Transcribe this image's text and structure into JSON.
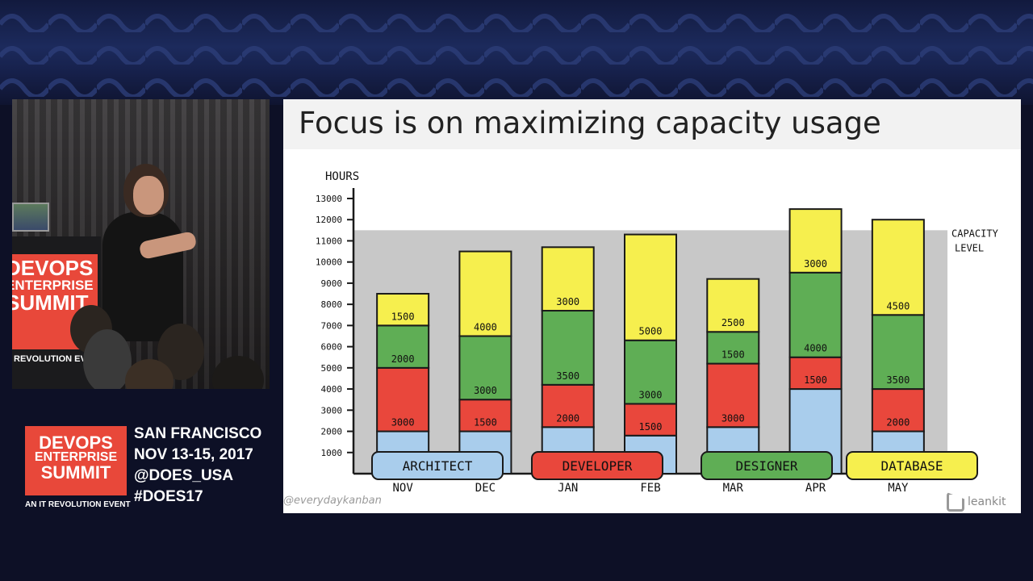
{
  "slide": {
    "title": "Focus is on maximizing capacity usage",
    "credit": "@everydaykanban",
    "brand": "leankit"
  },
  "conference": {
    "logo_lines": [
      "DEVOPS",
      "ENTERPRISE",
      "SUMMIT"
    ],
    "logo_event": "AN IT REVOLUTION EVENT",
    "city": "SAN FRANCISCO",
    "dates": "NOV 13-15, 2017",
    "handle": "@DOES_USA",
    "hashtag": "#DOES17"
  },
  "podium_sign": {
    "lines": [
      "DEVOPS",
      "ENTERPRISE",
      "SUMMIT"
    ],
    "event": "REVOLUTION EVE"
  },
  "colors": {
    "architect": "#a9cdec",
    "developer": "#e9473c",
    "designer": "#5fae55",
    "database": "#f6ef4e",
    "capacity_band": "#c8c8c8",
    "accent": "#e8483a"
  },
  "chart_data": {
    "type": "bar",
    "stacked": true,
    "ylabel": "HOURS",
    "ytick_labels": [
      "1000",
      "2000",
      "3000",
      "4000",
      "5000",
      "6000",
      "7000",
      "8000",
      "9000",
      "10000",
      "11000",
      "12000",
      "13000"
    ],
    "categories": [
      "NOV",
      "DEC",
      "JAN",
      "FEB",
      "MAR",
      "APR",
      "MAY"
    ],
    "series": [
      {
        "name": "ARCHITECT",
        "values": [
          2000,
          2000,
          2200,
          1800,
          2200,
          4000,
          2000
        ]
      },
      {
        "name": "DEVELOPER",
        "values": [
          3000,
          1500,
          2000,
          1500,
          3000,
          1500,
          2000
        ]
      },
      {
        "name": "DESIGNER",
        "values": [
          2000,
          3000,
          3500,
          3000,
          1500,
          4000,
          3500
        ]
      },
      {
        "name": "DATABASE",
        "values": [
          1500,
          4000,
          3000,
          5000,
          2500,
          3000,
          4500
        ]
      }
    ],
    "legend_labels": [
      "ARCHITECT",
      "DEVELOPER",
      "DESIGNER",
      "DATABASE"
    ],
    "capacity_label": [
      "CAPACITY",
      "LEVEL"
    ],
    "capacity_level": 11500,
    "ylim": [
      0,
      13800
    ],
    "legend_position": "bottom"
  }
}
